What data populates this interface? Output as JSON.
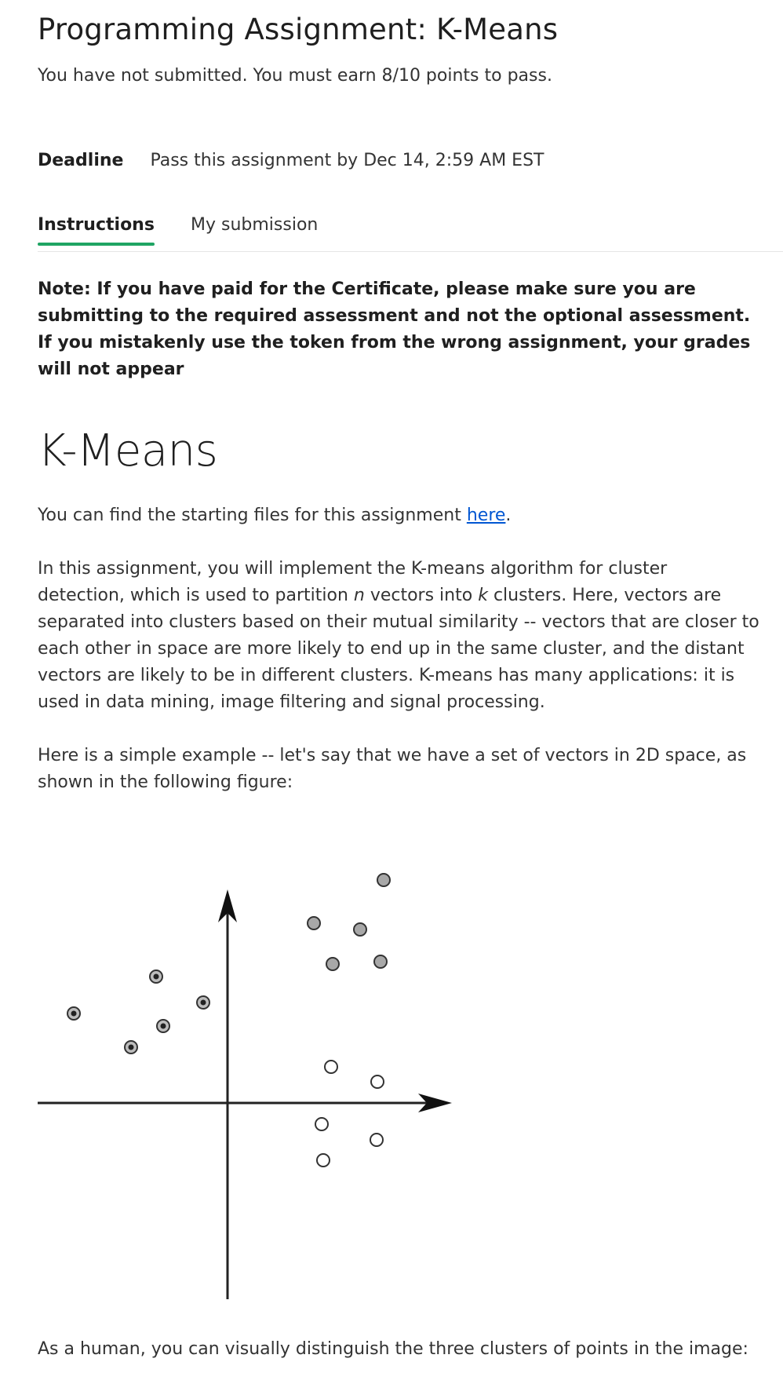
{
  "header": {
    "title": "Programming Assignment: K-Means",
    "status": "You have not submitted. You must earn 8/10 points to pass."
  },
  "deadline": {
    "label": "Deadline",
    "text": "Pass this assignment by Dec 14, 2:59 AM EST"
  },
  "tabs": [
    {
      "label": "Instructions",
      "active": true
    },
    {
      "label": "My submission",
      "active": false
    }
  ],
  "note": "Note: If you have paid for the Certificate, please make sure you are submitting to the required assessment and not the optional assessment. If you mistakenly use the token from the wrong assignment, your grades will not appear",
  "content": {
    "heading": "K-Means",
    "starting_files_prefix": "You can find the starting files for this assignment ",
    "starting_files_link": "here",
    "starting_files_suffix": ".",
    "intro_part1": "In this assignment, you will implement the K-means algorithm for cluster detection, which is used to partition ",
    "intro_var_n": "n",
    "intro_part2": " vectors into ",
    "intro_var_k": "k",
    "intro_part3": " clusters. Here, vectors are separated into clusters based on their mutual similarity -- vectors that are closer to each other in space are more likely to end up in the same cluster, and the distant vectors are likely to be in different clusters. K-means has many applications: it is used in data mining, image filtering and signal processing.",
    "example_text": "Here is a simple example -- let's say that we have a set of vectors in 2D space, as shown in the following figure:",
    "closing_text": "As a human, you can visually distinguish the three clusters of points in the image:"
  },
  "colors": {
    "accent_tab": "#1fa463",
    "link": "#0056d2",
    "gray_point": "#a8a8a8",
    "dark_point": "#333333"
  }
}
